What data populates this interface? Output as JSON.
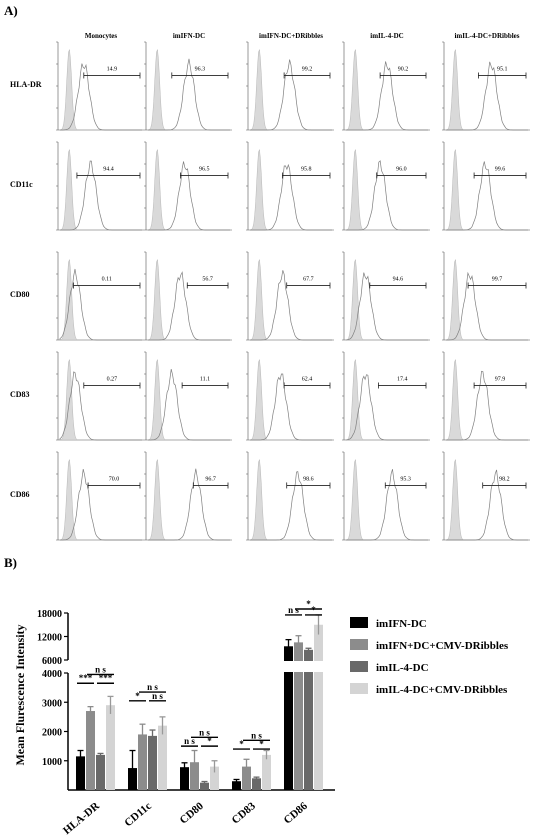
{
  "panel_a": {
    "label": "A)",
    "columns": [
      "Monocytes",
      "imIFN-DC",
      "imIFN-DC+DRibbles",
      "imIL-4-DC",
      "imIL-4-DC+DRibbles"
    ],
    "rows": [
      {
        "marker": "HLA-DR",
        "values": [
          "14.9",
          "96.3",
          "99.2",
          "90.2",
          "95.1"
        ]
      },
      {
        "marker": "CD11c",
        "values": [
          "94.4",
          "96.5",
          "95.8",
          "96.0",
          "99.6"
        ]
      },
      {
        "marker": "CD80",
        "values": [
          "0.11",
          "56.7",
          "67.7",
          "94.6",
          "99.7"
        ]
      },
      {
        "marker": "CD83",
        "values": [
          "0.27",
          "11.1",
          "62.4",
          "17.4",
          "97.9"
        ]
      },
      {
        "marker": "CD86",
        "values": [
          "70.0",
          "96.7",
          "98.6",
          "95.3",
          "98.2"
        ]
      }
    ],
    "histogram_colors": {
      "isotype_fill": "#d9d9d9",
      "sample_line": "#7f7f7f"
    }
  },
  "panel_b": {
    "label": "B)",
    "sig_labels": {
      "ns": "n s",
      "one": "*",
      "three": "***"
    }
  },
  "chart_data": {
    "type": "bar",
    "ylabel": "Mean Flurescence Intensity",
    "categories": [
      "HLA-DR",
      "CD11c",
      "CD80",
      "CD83",
      "CD86"
    ],
    "y_axis_broken": true,
    "y_lower_range": [
      0,
      4000
    ],
    "y_upper_range": [
      6000,
      18000
    ],
    "yticks_lower": [
      1000,
      2000,
      3000,
      4000
    ],
    "yticks_upper": [
      6000,
      12000,
      18000
    ],
    "grid": false,
    "legend_position": "right",
    "series": [
      {
        "name": "imIFN-DC",
        "color": "#000000",
        "values": [
          1150,
          750,
          780,
          300,
          9500
        ],
        "errors": [
          200,
          600,
          150,
          60,
          1700
        ]
      },
      {
        "name": "imIFN+DC+CMV-DRibbles",
        "color": "#8c8c8c",
        "values": [
          2700,
          1900,
          950,
          800,
          10500
        ],
        "errors": [
          150,
          350,
          400,
          250,
          1700
        ]
      },
      {
        "name": "imIL-4-DC",
        "color": "#696969",
        "values": [
          1200,
          1850,
          250,
          400,
          8600
        ],
        "errors": [
          50,
          200,
          40,
          40,
          400
        ]
      },
      {
        "name": "imIL-4-DC+CMV-DRibbles",
        "color": "#d4d4d4",
        "values": [
          2900,
          2200,
          800,
          1200,
          15000
        ],
        "errors": [
          300,
          300,
          200,
          150,
          2500
        ]
      }
    ]
  }
}
